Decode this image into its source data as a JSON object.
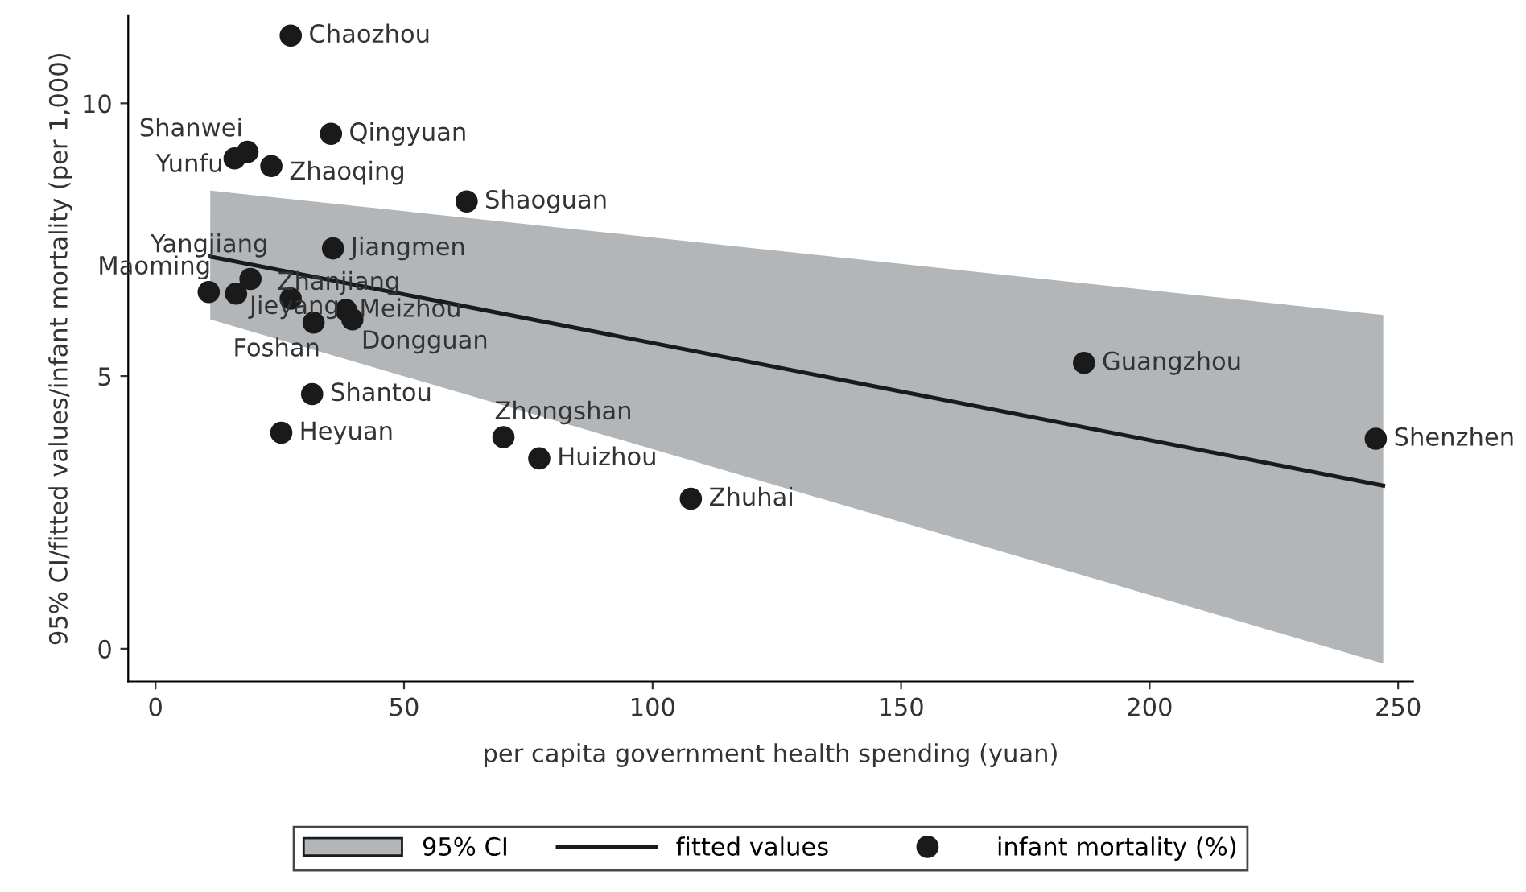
{
  "chart_data": {
    "type": "scatter",
    "xlabel": "per capita government health spending (yuan)",
    "ylabel": "95% CI/fitted values/infant mortality (per 1,000)",
    "xlim": [
      -5.5,
      253
    ],
    "ylim": [
      -0.6,
      11.6
    ],
    "xticks": [
      0,
      50,
      100,
      150,
      200,
      250
    ],
    "yticks": [
      0,
      5,
      10
    ],
    "grid": false,
    "legend": "bottom",
    "series": [
      {
        "name": "fitted values",
        "type": "line",
        "color": "#1a1a1a",
        "line_style": "solid",
        "x": [
          11,
          247
        ],
        "values": [
          7.19,
          2.99
        ],
        "lower": [
          6.04,
          -0.27
        ],
        "upper": [
          8.4,
          6.12
        ]
      },
      {
        "name": "infant mortality (%)",
        "type": "scatter",
        "marker": "circle",
        "color": "#1a1a1a",
        "x": [
          27.2,
          35.3,
          18.5,
          15.9,
          23.3,
          62.6,
          35.7,
          19.1,
          10.7,
          16.2,
          27.2,
          38.3,
          31.8,
          39.6,
          31.5,
          25.3,
          70.0,
          77.2,
          107.7,
          186.8,
          245.5
        ],
        "values": [
          11.24,
          9.44,
          9.11,
          8.99,
          8.85,
          8.2,
          7.34,
          6.78,
          6.54,
          6.51,
          6.42,
          6.21,
          5.98,
          6.04,
          4.67,
          3.96,
          3.88,
          3.49,
          2.75,
          5.24,
          3.85
        ]
      }
    ],
    "annotations": [
      "95% CI",
      {
        "text": "Chaozhou",
        "x": 27.2,
        "y": 11.24
      },
      {
        "text": "Qingyuan",
        "x": 35.3,
        "y": 9.44
      },
      {
        "text": "Shanwei",
        "x": 18.5,
        "y": 9.11
      },
      {
        "text": "Yunfu",
        "x": 15.9,
        "y": 8.99
      },
      {
        "text": "Zhaoqing",
        "x": 23.3,
        "y": 8.85
      },
      {
        "text": "Shaoguan",
        "x": 62.6,
        "y": 8.2
      },
      {
        "text": "Jiangmen",
        "x": 35.7,
        "y": 7.34
      },
      {
        "text": "Yangjiang",
        "x": 19.1,
        "y": 6.78
      },
      {
        "text": "Maoming",
        "x": 10.7,
        "y": 6.54
      },
      {
        "text": "Jieyang",
        "x": 16.2,
        "y": 6.51
      },
      {
        "text": "Zhanjiang",
        "x": 27.2,
        "y": 6.42
      },
      {
        "text": "Meizhou",
        "x": 38.3,
        "y": 6.21
      },
      {
        "text": "Foshan",
        "x": 31.8,
        "y": 5.98
      },
      {
        "text": "Dongguan",
        "x": 39.6,
        "y": 6.04
      },
      {
        "text": "Shantou",
        "x": 31.5,
        "y": 4.67
      },
      {
        "text": "Heyuan",
        "x": 25.3,
        "y": 3.96
      },
      {
        "text": "Zhongshan",
        "x": 70.0,
        "y": 3.88
      },
      {
        "text": "Huizhou",
        "x": 77.2,
        "y": 3.49
      },
      {
        "text": "Zhuhai",
        "x": 107.7,
        "y": 2.75
      },
      {
        "text": "Guangzhou",
        "x": 186.8,
        "y": 5.24
      },
      {
        "text": "Shenzhen",
        "x": 245.5,
        "y": 3.85
      }
    ]
  }
}
